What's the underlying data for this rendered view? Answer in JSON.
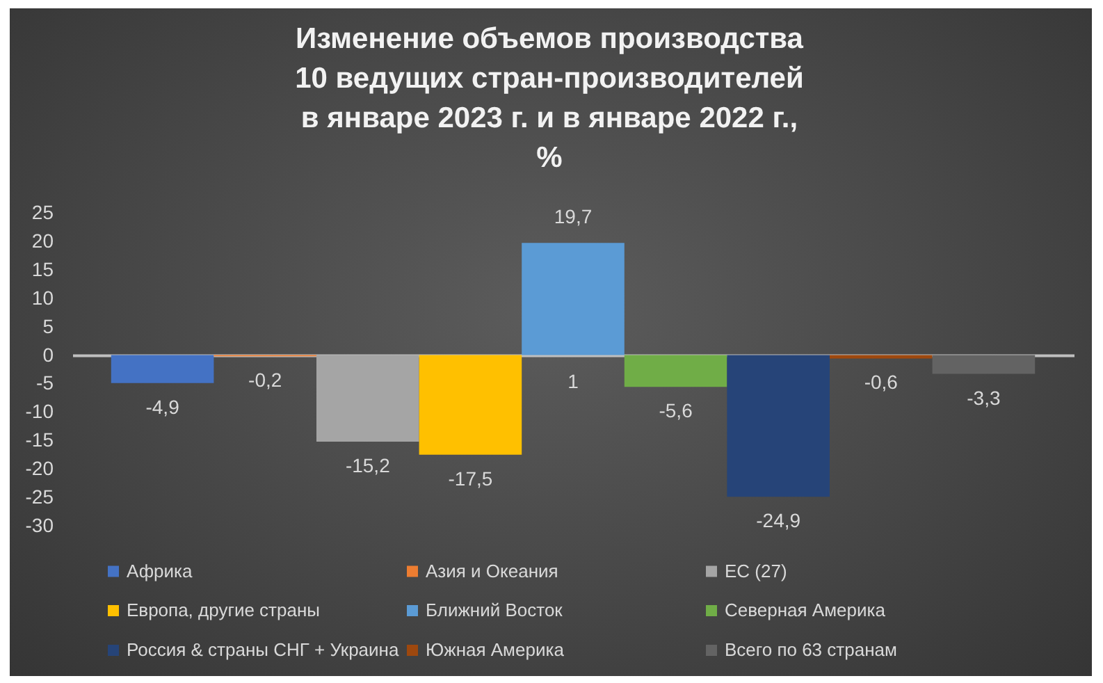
{
  "chart_data": {
    "type": "bar",
    "title": "Изменение объемов производства\n10 ведущих стран-производителей\nв январе 2023 г. и в январе 2022 г.,\n%",
    "categories": [
      "1"
    ],
    "series": [
      {
        "name": "Африка",
        "color": "#4472c4",
        "values": [
          -4.9
        ],
        "value_labels": [
          "-4,9"
        ]
      },
      {
        "name": "Азия и Океания",
        "color": "#ed7d31",
        "values": [
          -0.2
        ],
        "value_labels": [
          "-0,2"
        ]
      },
      {
        "name": "ЕС (27)",
        "color": "#a5a5a5",
        "values": [
          -15.2
        ],
        "value_labels": [
          "-15,2"
        ]
      },
      {
        "name": "Европа, другие страны",
        "color": "#ffc000",
        "values": [
          -17.5
        ],
        "value_labels": [
          "-17,5"
        ]
      },
      {
        "name": "Ближний Восток",
        "color": "#5b9bd5",
        "values": [
          19.7
        ],
        "value_labels": [
          "19,7"
        ]
      },
      {
        "name": "Северная Америка",
        "color": "#70ad47",
        "values": [
          -5.6
        ],
        "value_labels": [
          "-5,6"
        ]
      },
      {
        "name": "Россия & страны СНГ + Украина",
        "color": "#264478",
        "values": [
          -24.9
        ],
        "value_labels": [
          "-24,9"
        ]
      },
      {
        "name": "Южная Америка",
        "color": "#9e480e",
        "values": [
          -0.6
        ],
        "value_labels": [
          "-0,6"
        ]
      },
      {
        "name": "Всего по 63 странам",
        "color": "#636363",
        "values": [
          -3.3
        ],
        "value_labels": [
          "-3,3"
        ]
      }
    ],
    "ylim": [
      -30,
      25
    ],
    "yticks": [
      -30,
      -25,
      -20,
      -15,
      -10,
      -5,
      0,
      5,
      10,
      15,
      20,
      25
    ],
    "legend": "bottom"
  }
}
